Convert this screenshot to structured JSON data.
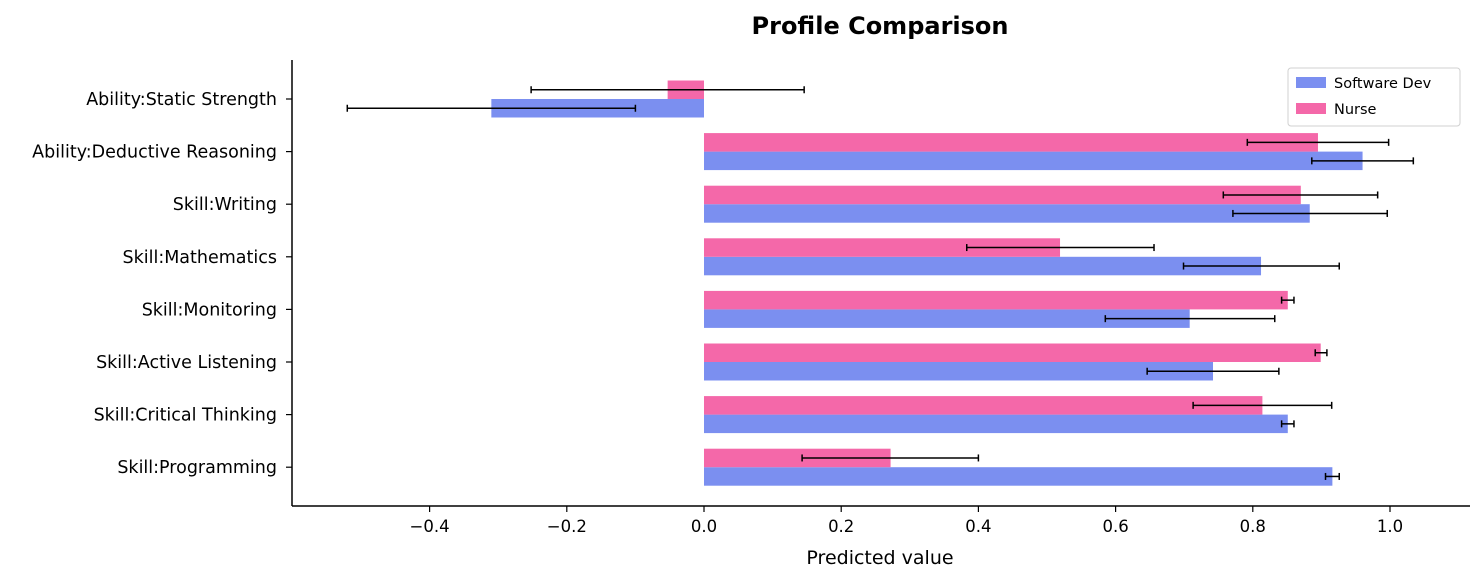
{
  "chart_data": {
    "type": "bar",
    "orientation": "horizontal",
    "title": "Profile Comparison",
    "xlabel": "Predicted value",
    "ylabel": "",
    "xlim": [
      -0.6,
      1.12
    ],
    "x_ticks": [
      -0.4,
      -0.2,
      0.0,
      0.2,
      0.4,
      0.6,
      0.8,
      1.0
    ],
    "x_tick_labels": [
      "−0.4",
      "−0.2",
      "0.0",
      "0.2",
      "0.4",
      "0.6",
      "0.8",
      "1.0"
    ],
    "grid": false,
    "legend_position": "top-right",
    "categories": [
      "Ability:Static Strength",
      "Ability:Deductive Reasoning",
      "Skill:Writing",
      "Skill:Mathematics",
      "Skill:Monitoring",
      "Skill:Active Listening",
      "Skill:Critical Thinking",
      "Skill:Programming"
    ],
    "series": [
      {
        "name": "Software Dev",
        "color": "#7b8ff0",
        "values": [
          -0.31,
          0.96,
          0.883,
          0.812,
          0.708,
          0.742,
          0.851,
          0.916
        ],
        "err_low": [
          -0.52,
          0.886,
          0.771,
          0.699,
          0.585,
          0.646,
          0.842,
          0.906
        ],
        "err_high": [
          -0.1,
          1.034,
          0.996,
          0.926,
          0.832,
          0.838,
          0.86,
          0.926
        ]
      },
      {
        "name": "Nurse",
        "color": "#f468a9",
        "values": [
          -0.053,
          0.895,
          0.87,
          0.519,
          0.851,
          0.899,
          0.814,
          0.272
        ],
        "err_low": [
          -0.252,
          0.792,
          0.757,
          0.383,
          0.842,
          0.891,
          0.713,
          0.143
        ],
        "err_high": [
          0.146,
          0.998,
          0.982,
          0.656,
          0.86,
          0.908,
          0.915,
          0.4
        ]
      }
    ]
  }
}
